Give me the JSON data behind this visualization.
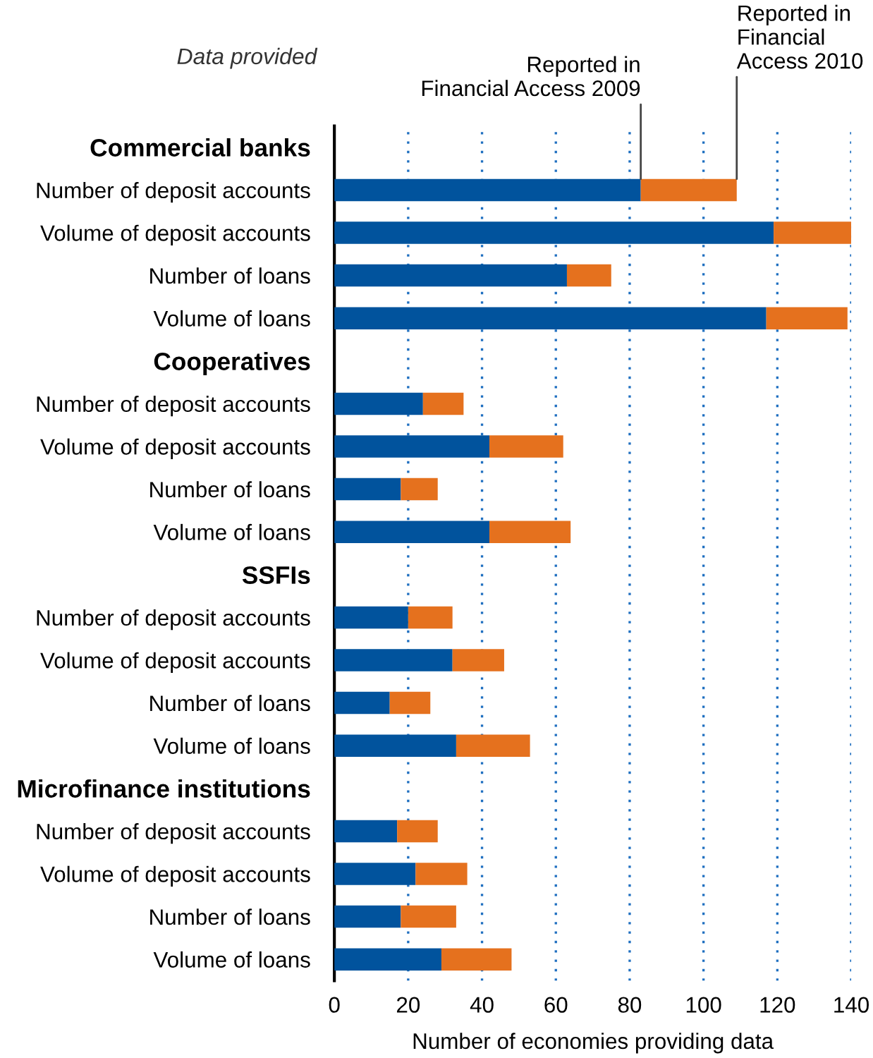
{
  "chart_data": {
    "type": "bar",
    "orientation": "horizontal",
    "stacked": true,
    "categories": [
      "Commercial banks",
      "Number of deposit accounts",
      "Volume of deposit accounts",
      "Number of loans",
      "Volume of loans",
      "Cooperatives",
      "Number of deposit accounts",
      "Volume of deposit accounts",
      "Number of loans",
      "Volume of loans",
      "SSFIs",
      "Number of deposit accounts",
      "Volume of deposit accounts",
      "Number of loans",
      "Volume of loans",
      "Microfinance institutions",
      "Number of deposit accounts",
      "Volume of deposit accounts",
      "Number of loans",
      "Volume of loans"
    ],
    "series": [
      {
        "name": "Reported in\nFinancial Access 2009",
        "color": "#01539d",
        "values": [
          null,
          83,
          119,
          63,
          117,
          null,
          24,
          42,
          18,
          42,
          null,
          20,
          32,
          15,
          33,
          null,
          17,
          22,
          18,
          29
        ]
      },
      {
        "name": "Reported in\nFinancial\nAccess 2010",
        "color": "#e5711e",
        "values": [
          null,
          26,
          21,
          12,
          22,
          null,
          11,
          20,
          10,
          22,
          null,
          12,
          14,
          11,
          20,
          null,
          11,
          14,
          15,
          19
        ]
      }
    ],
    "xlim": [
      0,
      140
    ],
    "xticks": [
      0,
      20,
      40,
      60,
      80,
      100,
      120,
      140
    ],
    "xlabel": "Number of economies providing data",
    "annotations": [
      "Data provided"
    ],
    "grid": "x",
    "legend": false
  }
}
